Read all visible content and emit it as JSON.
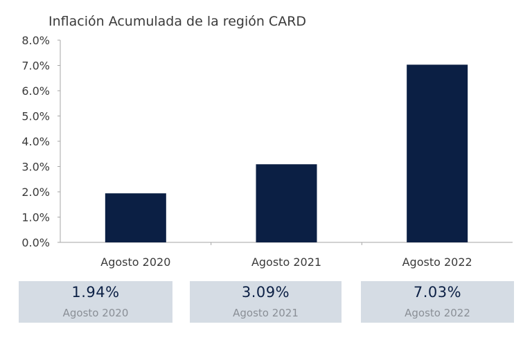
{
  "chart_data": {
    "type": "bar",
    "title": "Inflación Acumulada de la región CARD",
    "xlabel": "",
    "ylabel": "",
    "categories": [
      "Agosto 2020",
      "Agosto 2021",
      "Agosto 2022"
    ],
    "values": [
      1.94,
      3.09,
      7.03
    ],
    "ylim": [
      0,
      8
    ],
    "yticks": [
      "0.0%",
      "1.0%",
      "2.0%",
      "3.0%",
      "4.0%",
      "5.0%",
      "6.0%",
      "7.0%",
      "8.0%"
    ],
    "grid": false,
    "bar_color": "#0b1f44"
  },
  "summary_cards": [
    {
      "value": "1.94%",
      "label": "Agosto 2020"
    },
    {
      "value": "3.09%",
      "label": "Agosto 2021"
    },
    {
      "value": "7.03%",
      "label": "Agosto 2022"
    }
  ],
  "colors": {
    "card_background": "#d5dce4",
    "card_value": "#0b1f44",
    "card_label": "#8a8f96",
    "text": "#3a3a3a",
    "axis": "#a6a6a6"
  }
}
